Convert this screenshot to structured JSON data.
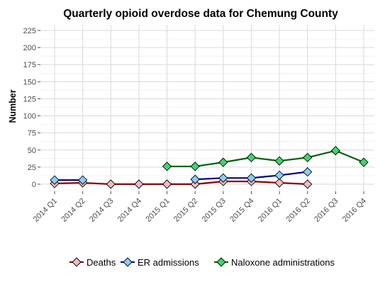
{
  "chart_data": {
    "type": "line",
    "title": "Quarterly opioid overdose data for Chemung County",
    "xlabel": "",
    "ylabel": "Number",
    "ylim": [
      0,
      225
    ],
    "yticks": [
      0,
      25,
      50,
      75,
      100,
      125,
      150,
      175,
      200,
      225
    ],
    "categories": [
      "2014 Q1",
      "2014 Q2",
      "2014 Q3",
      "2014 Q4",
      "2015 Q1",
      "2015 Q2",
      "2015 Q3",
      "2015 Q4",
      "2016 Q1",
      "2016 Q2",
      "2016 Q3",
      "2016 Q4"
    ],
    "grid": true,
    "legend_position": "bottom",
    "series": [
      {
        "name": "Deaths",
        "line_color": "#8b0000",
        "fill": "#f4b8c2",
        "values": [
          1,
          2,
          0,
          0,
          0,
          0,
          4,
          4,
          2,
          0,
          null,
          null
        ]
      },
      {
        "name": "ER admissions",
        "line_color": "#00008b",
        "fill": "#87cefa",
        "values": [
          6,
          6,
          null,
          null,
          null,
          7,
          9,
          9,
          13,
          18,
          null,
          null
        ]
      },
      {
        "name": "Naloxone administrations",
        "line_color": "#006400",
        "fill": "#3cd66a",
        "values": [
          null,
          null,
          null,
          null,
          26,
          26,
          32,
          39,
          34,
          39,
          49,
          32
        ]
      }
    ]
  }
}
